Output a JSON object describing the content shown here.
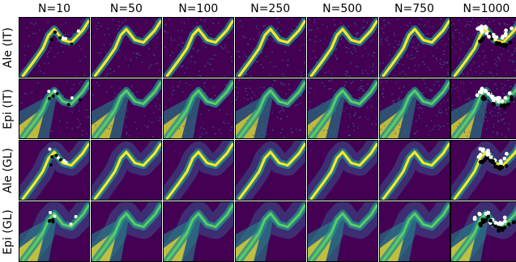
{
  "chart_data": {
    "type": "heatmap",
    "layout": "grid of density heatmap panels",
    "columns": [
      "N=10",
      "N=50",
      "N=100",
      "N=250",
      "N=500",
      "N=750",
      "N=1000"
    ],
    "rows": [
      "Ale (IT)",
      "Epi (IT)",
      "Ale (GL)",
      "Epi (GL)"
    ],
    "colormap": "viridis",
    "colors": {
      "low": "#440154",
      "mid": "#21908d",
      "high": "#fde725",
      "train_class_a": "#ffffff",
      "train_class_b": "#000000"
    },
    "overlay": "training points shown as white and black dots in the N=10 and N=1000 columns",
    "axes_ticks": "none",
    "grid": false
  }
}
